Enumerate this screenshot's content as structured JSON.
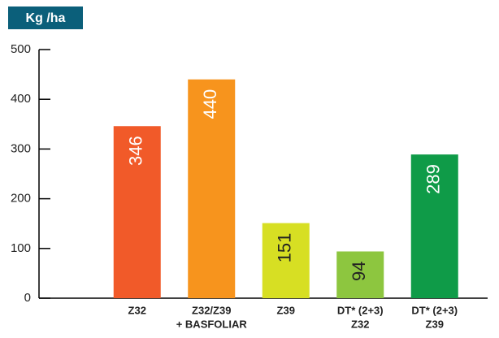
{
  "chart_data": {
    "type": "bar",
    "title": "Kg /ha",
    "categories": [
      [
        "Z32"
      ],
      [
        "Z32/Z39",
        "+ BASFOLIAR"
      ],
      [
        "Z39"
      ],
      [
        "DT* (2+3)",
        "Z32"
      ],
      [
        "DT* (2+3)",
        "Z39"
      ]
    ],
    "values": [
      346,
      440,
      151,
      94,
      289
    ],
    "colors": [
      "#f15a29",
      "#f7941d",
      "#d7df23",
      "#8dc63f",
      "#0f9b48"
    ],
    "label_colors": [
      "#ffffff",
      "#ffffff",
      "#222222",
      "#222222",
      "#ffffff"
    ],
    "ylim": [
      0,
      500
    ],
    "yticks": [
      0,
      100,
      200,
      300,
      400,
      500
    ],
    "grid": false
  }
}
